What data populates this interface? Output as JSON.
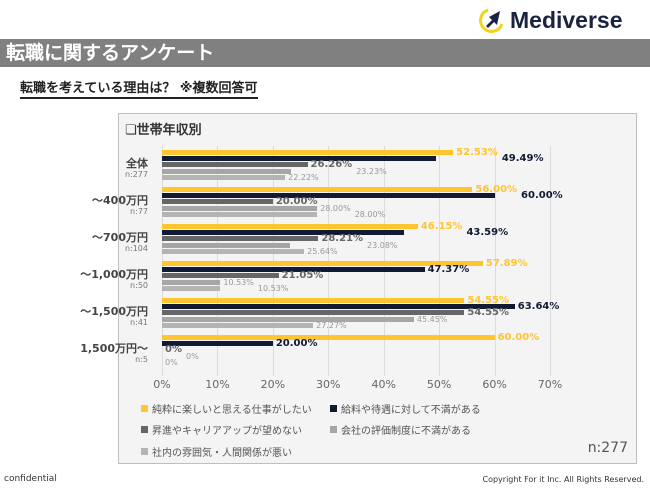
{
  "logo": {
    "text": "Mediverse"
  },
  "header": {
    "title": "転職に関するアンケート",
    "subtitle": "転職を考えている理由は？ ※複数回答可"
  },
  "chart_data": {
    "type": "bar",
    "orientation": "horizontal",
    "title": "❏世帯年収別",
    "categories": [
      "全体",
      "～400万円",
      "～700万円",
      "～1,000万円",
      "～1,500万円",
      "1,500万円～"
    ],
    "sample_sizes": [
      "n:277",
      "n:77",
      "n:104",
      "n:50",
      "n:41",
      "n:5"
    ],
    "xlim": [
      0,
      70
    ],
    "ticks": [
      "0%",
      "10%",
      "20%",
      "30%",
      "40%",
      "50%",
      "60%",
      "70%"
    ],
    "grid": true,
    "legend_position": "bottom",
    "series": [
      {
        "name": "純粋に楽しいと思える仕事がしたい",
        "color": "#ffc52f",
        "values": [
          52.53,
          56.0,
          46.15,
          57.89,
          54.55,
          60.0
        ],
        "labels": [
          "52.53%",
          "56.00%",
          "46.15%",
          "57.89%",
          "54.55%",
          "60.00%"
        ]
      },
      {
        "name": "給料や待遇に対して不満がある",
        "color": "#111a33",
        "values": [
          49.49,
          60.0,
          43.59,
          47.37,
          63.64,
          20.0
        ],
        "labels": [
          "49.49%",
          "60.00%",
          "43.59%",
          "47.37%",
          "63.64%",
          "20.00%"
        ]
      },
      {
        "name": "昇進やキャリアアップが望めない",
        "color": "#666666",
        "values": [
          26.26,
          20.0,
          28.21,
          21.05,
          54.55,
          0
        ],
        "labels": [
          "26.26%",
          "20.00%",
          "28.21%",
          "21.05%",
          "54.55%",
          "0%"
        ]
      },
      {
        "name": "会社の評価制度に不満がある",
        "color": "#a6a6a6",
        "values": [
          23.23,
          28.0,
          23.08,
          10.53,
          45.45,
          0
        ],
        "labels": [
          "23.23%",
          "28.00%",
          "23.08%",
          "10.53%",
          "45.45%",
          "0%"
        ]
      },
      {
        "name": "社内の雰囲気・人間関係が悪い",
        "color": "#b4b4b4",
        "values": [
          22.22,
          28.0,
          25.64,
          10.53,
          27.27,
          0
        ],
        "labels": [
          "22.22%",
          "28.00%",
          "25.64%",
          "10.53%",
          "27.27%",
          "0%"
        ]
      }
    ],
    "total": "n:277"
  },
  "footer": {
    "left": "confidential",
    "right": "Copyright For it Inc. All Rights Reserved."
  }
}
